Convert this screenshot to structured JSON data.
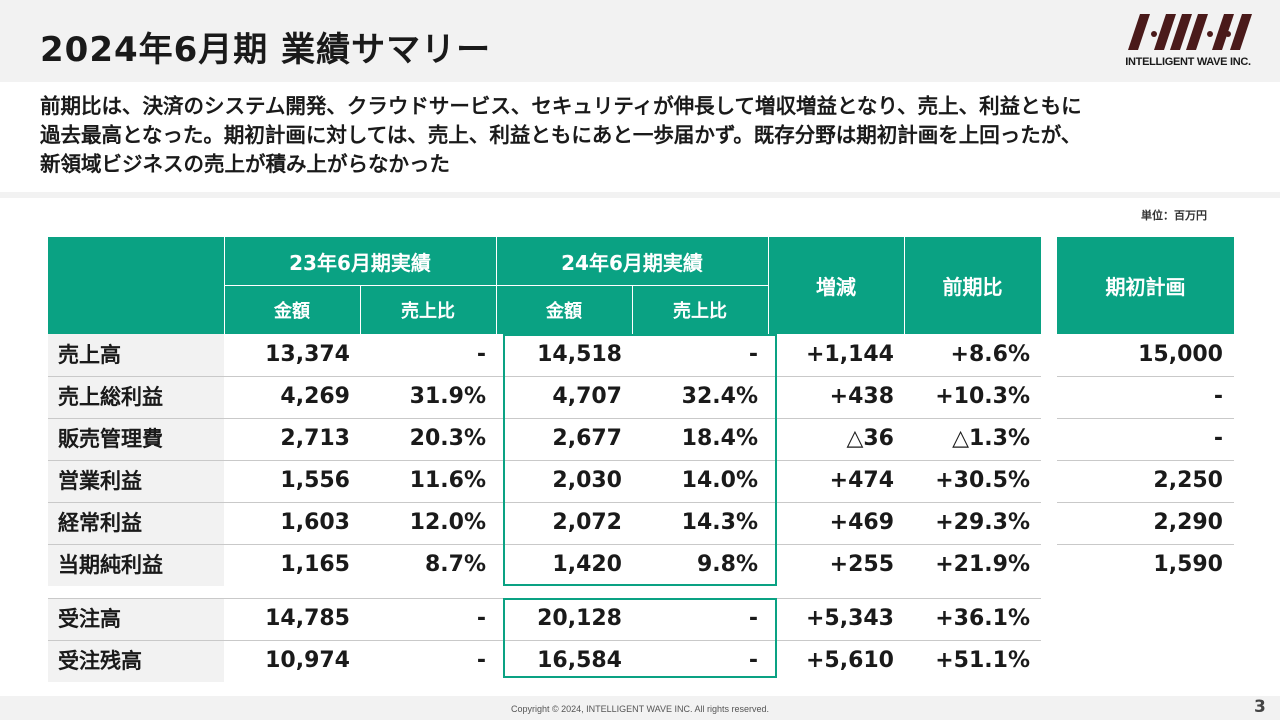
{
  "title": "2024年6月期 業績サマリー",
  "logo": {
    "company": "INTELLIGENT WAVE INC."
  },
  "summary": {
    "lines": [
      "前期比は、決済のシステム開発、クラウドサービス、セキュリティが伸長して増収増益となり、売上、利益ともに",
      "過去最高となった。期初計画に対しては、売上、利益ともにあと一歩届かず。既存分野は期初計画を上回ったが、",
      "新領域ビジネスの売上が積み上がらなかった"
    ]
  },
  "unit_label": "単位：百万円",
  "table": {
    "headers": {
      "fy23": "23年6月期実績",
      "fy24": "24年6月期実績",
      "amount": "金額",
      "ratio": "売上比",
      "change": "増減",
      "yoy": "前期比",
      "plan": "期初計画"
    },
    "rows": [
      {
        "label": "売上高",
        "fy23_amount": "13,374",
        "fy23_ratio": "-",
        "fy24_amount": "14,518",
        "fy24_ratio": "-",
        "change": "+1,144",
        "yoy": "+8.6%",
        "plan": "15,000"
      },
      {
        "label": "売上総利益",
        "fy23_amount": "4,269",
        "fy23_ratio": "31.9%",
        "fy24_amount": "4,707",
        "fy24_ratio": "32.4%",
        "change": "+438",
        "yoy": "+10.3%",
        "plan": "-"
      },
      {
        "label": "販売管理費",
        "fy23_amount": "2,713",
        "fy23_ratio": "20.3%",
        "fy24_amount": "2,677",
        "fy24_ratio": "18.4%",
        "change": "△36",
        "yoy": "△1.3%",
        "plan": "-"
      },
      {
        "label": "営業利益",
        "fy23_amount": "1,556",
        "fy23_ratio": "11.6%",
        "fy24_amount": "2,030",
        "fy24_ratio": "14.0%",
        "change": "+474",
        "yoy": "+30.5%",
        "plan": "2,250"
      },
      {
        "label": "経常利益",
        "fy23_amount": "1,603",
        "fy23_ratio": "12.0%",
        "fy24_amount": "2,072",
        "fy24_ratio": "14.3%",
        "change": "+469",
        "yoy": "+29.3%",
        "plan": "2,290"
      },
      {
        "label": "当期純利益",
        "fy23_amount": "1,165",
        "fy23_ratio": "8.7%",
        "fy24_amount": "1,420",
        "fy24_ratio": "9.8%",
        "change": "+255",
        "yoy": "+21.9%",
        "plan": "1,590"
      }
    ],
    "order_rows": [
      {
        "label": "受注高",
        "fy23_amount": "14,785",
        "fy23_ratio": "-",
        "fy24_amount": "20,128",
        "fy24_ratio": "-",
        "change": "+5,343",
        "yoy": "+36.1%"
      },
      {
        "label": "受注残高",
        "fy23_amount": "10,974",
        "fy23_ratio": "-",
        "fy24_amount": "16,584",
        "fy24_ratio": "-",
        "change": "+5,610",
        "yoy": "+51.1%"
      }
    ]
  },
  "footer": {
    "copyright": "Copyright © 2024, INTELLIGENT WAVE INC. All rights reserved.",
    "page": "3"
  },
  "colors": {
    "accent": "#0aa283",
    "band": "#f2f2f2",
    "logo": "#4a1a1a"
  }
}
